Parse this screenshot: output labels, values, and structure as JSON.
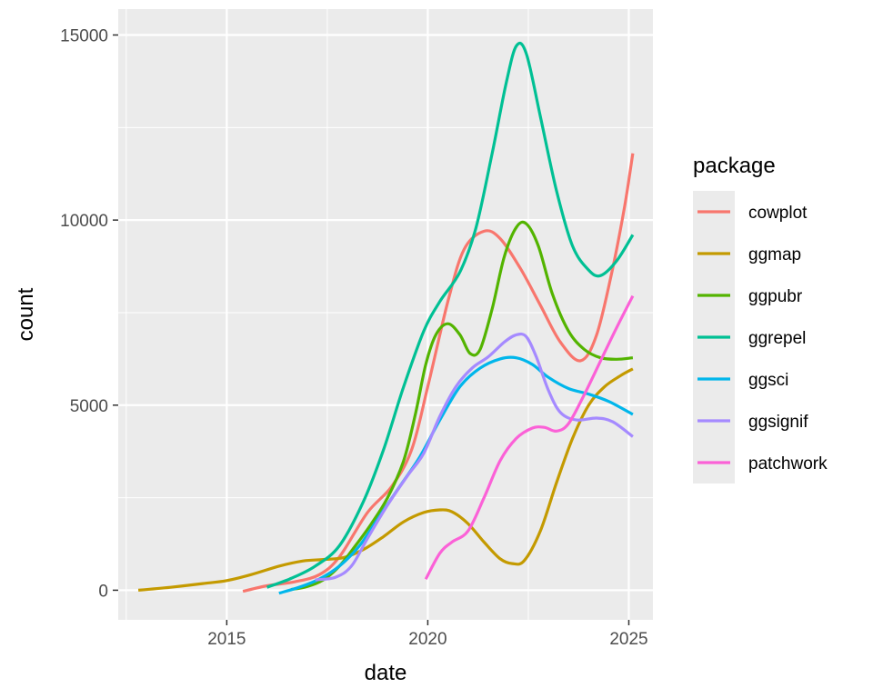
{
  "chart_data": {
    "type": "line",
    "xlabel": "date",
    "ylabel": "count",
    "xlim": [
      2012.3,
      2025.6
    ],
    "ylim": [
      -800,
      15700
    ],
    "x_ticks": [
      2015,
      2020,
      2025
    ],
    "y_ticks": [
      0,
      5000,
      10000,
      15000
    ],
    "x_minor": [
      2012.5,
      2017.5,
      2022.5
    ],
    "y_minor": [
      2500,
      7500,
      12500
    ],
    "grid": true,
    "legend": {
      "title": "package",
      "position": "right"
    },
    "series": [
      {
        "name": "cowplot",
        "color": "#F8766D",
        "points": [
          [
            2015.4,
            -30
          ],
          [
            2016.0,
            120
          ],
          [
            2016.7,
            230
          ],
          [
            2017.3,
            420
          ],
          [
            2017.8,
            900
          ],
          [
            2018.5,
            2100
          ],
          [
            2019.1,
            2800
          ],
          [
            2019.6,
            3800
          ],
          [
            2020.0,
            5500
          ],
          [
            2020.5,
            7800
          ],
          [
            2020.9,
            9200
          ],
          [
            2021.4,
            9700
          ],
          [
            2021.8,
            9500
          ],
          [
            2022.3,
            8700
          ],
          [
            2022.8,
            7700
          ],
          [
            2023.3,
            6700
          ],
          [
            2023.8,
            6200
          ],
          [
            2024.2,
            6900
          ],
          [
            2024.6,
            8700
          ],
          [
            2024.9,
            10400
          ],
          [
            2025.1,
            11800
          ]
        ]
      },
      {
        "name": "ggmap",
        "color": "#C49A00",
        "points": [
          [
            2012.8,
            0
          ],
          [
            2013.6,
            80
          ],
          [
            2014.4,
            180
          ],
          [
            2015.0,
            260
          ],
          [
            2015.6,
            420
          ],
          [
            2016.3,
            650
          ],
          [
            2016.9,
            790
          ],
          [
            2017.4,
            830
          ],
          [
            2017.9,
            880
          ],
          [
            2018.4,
            1100
          ],
          [
            2018.9,
            1450
          ],
          [
            2019.4,
            1850
          ],
          [
            2019.9,
            2100
          ],
          [
            2020.3,
            2170
          ],
          [
            2020.6,
            2120
          ],
          [
            2021.0,
            1800
          ],
          [
            2021.4,
            1300
          ],
          [
            2021.8,
            850
          ],
          [
            2022.1,
            720
          ],
          [
            2022.4,
            800
          ],
          [
            2022.8,
            1600
          ],
          [
            2023.2,
            2900
          ],
          [
            2023.6,
            4100
          ],
          [
            2024.0,
            5000
          ],
          [
            2024.4,
            5500
          ],
          [
            2024.8,
            5800
          ],
          [
            2025.1,
            5980
          ]
        ]
      },
      {
        "name": "ggpubr",
        "color": "#53B400",
        "points": [
          [
            2016.6,
            20
          ],
          [
            2017.0,
            100
          ],
          [
            2017.4,
            280
          ],
          [
            2017.8,
            650
          ],
          [
            2018.2,
            1200
          ],
          [
            2018.6,
            1800
          ],
          [
            2019.0,
            2500
          ],
          [
            2019.4,
            3500
          ],
          [
            2019.7,
            4800
          ],
          [
            2019.95,
            6100
          ],
          [
            2020.2,
            6900
          ],
          [
            2020.5,
            7200
          ],
          [
            2020.8,
            6900
          ],
          [
            2021.05,
            6400
          ],
          [
            2021.3,
            6500
          ],
          [
            2021.6,
            7600
          ],
          [
            2021.9,
            9000
          ],
          [
            2022.2,
            9800
          ],
          [
            2022.45,
            9900
          ],
          [
            2022.75,
            9300
          ],
          [
            2023.1,
            8000
          ],
          [
            2023.5,
            7000
          ],
          [
            2023.9,
            6500
          ],
          [
            2024.3,
            6280
          ],
          [
            2024.7,
            6240
          ],
          [
            2025.1,
            6280
          ]
        ]
      },
      {
        "name": "ggrepel",
        "color": "#00C094",
        "points": [
          [
            2016.0,
            80
          ],
          [
            2016.6,
            320
          ],
          [
            2017.2,
            650
          ],
          [
            2017.8,
            1200
          ],
          [
            2018.4,
            2400
          ],
          [
            2018.9,
            3800
          ],
          [
            2019.4,
            5500
          ],
          [
            2019.9,
            7000
          ],
          [
            2020.3,
            7800
          ],
          [
            2020.8,
            8600
          ],
          [
            2021.2,
            9800
          ],
          [
            2021.6,
            11800
          ],
          [
            2021.95,
            13700
          ],
          [
            2022.2,
            14700
          ],
          [
            2022.45,
            14500
          ],
          [
            2022.8,
            12800
          ],
          [
            2023.2,
            10800
          ],
          [
            2023.6,
            9300
          ],
          [
            2024.0,
            8650
          ],
          [
            2024.3,
            8500
          ],
          [
            2024.7,
            8900
          ],
          [
            2025.1,
            9600
          ]
        ]
      },
      {
        "name": "ggsci",
        "color": "#00B6EB",
        "points": [
          [
            2016.3,
            -80
          ],
          [
            2016.8,
            80
          ],
          [
            2017.3,
            300
          ],
          [
            2017.8,
            650
          ],
          [
            2018.3,
            1200
          ],
          [
            2018.8,
            2000
          ],
          [
            2019.3,
            2800
          ],
          [
            2019.8,
            3600
          ],
          [
            2020.3,
            4600
          ],
          [
            2020.8,
            5500
          ],
          [
            2021.3,
            6000
          ],
          [
            2021.8,
            6250
          ],
          [
            2022.2,
            6280
          ],
          [
            2022.6,
            6100
          ],
          [
            2023.0,
            5750
          ],
          [
            2023.5,
            5450
          ],
          [
            2024.0,
            5300
          ],
          [
            2024.5,
            5100
          ],
          [
            2025.1,
            4750
          ]
        ]
      },
      {
        "name": "ggsignif",
        "color": "#A58AFF",
        "points": [
          [
            2017.2,
            280
          ],
          [
            2017.7,
            350
          ],
          [
            2018.1,
            650
          ],
          [
            2018.5,
            1400
          ],
          [
            2019.0,
            2300
          ],
          [
            2019.5,
            3100
          ],
          [
            2019.9,
            3700
          ],
          [
            2020.3,
            4700
          ],
          [
            2020.7,
            5500
          ],
          [
            2021.1,
            6000
          ],
          [
            2021.5,
            6300
          ],
          [
            2021.9,
            6700
          ],
          [
            2022.2,
            6900
          ],
          [
            2022.45,
            6850
          ],
          [
            2022.7,
            6300
          ],
          [
            2023.0,
            5400
          ],
          [
            2023.3,
            4800
          ],
          [
            2023.7,
            4600
          ],
          [
            2024.2,
            4650
          ],
          [
            2024.6,
            4550
          ],
          [
            2025.1,
            4150
          ]
        ]
      },
      {
        "name": "patchwork",
        "color": "#FB61D7",
        "points": [
          [
            2019.95,
            300
          ],
          [
            2020.3,
            1000
          ],
          [
            2020.6,
            1300
          ],
          [
            2021.0,
            1600
          ],
          [
            2021.4,
            2500
          ],
          [
            2021.8,
            3500
          ],
          [
            2022.2,
            4100
          ],
          [
            2022.6,
            4380
          ],
          [
            2022.9,
            4400
          ],
          [
            2023.2,
            4300
          ],
          [
            2023.5,
            4500
          ],
          [
            2023.9,
            5300
          ],
          [
            2024.3,
            6200
          ],
          [
            2024.7,
            7100
          ],
          [
            2025.1,
            7950
          ]
        ]
      }
    ]
  }
}
